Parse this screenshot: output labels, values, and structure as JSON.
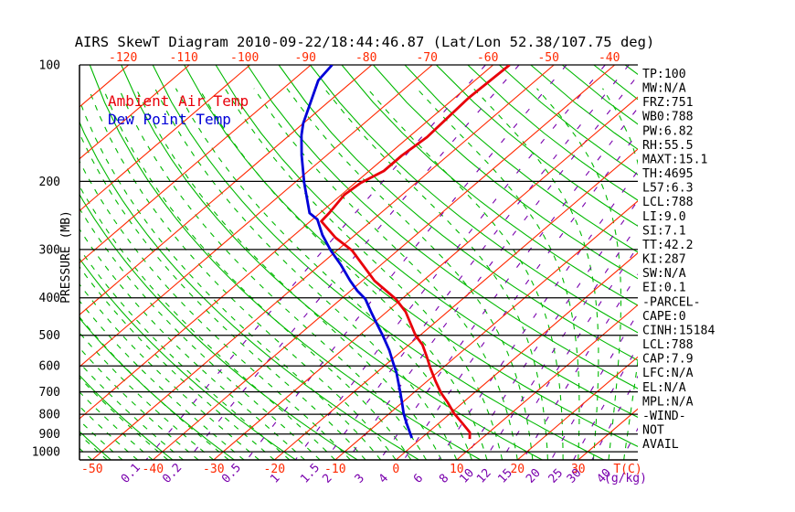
{
  "title": "AIRS SkewT Diagram 2010-09-22/18:44:46.87 (Lat/Lon 52.38/107.75 deg)",
  "legend": {
    "temperature_label": "Ambient Air Temp",
    "dewpoint_label": "Dew Point Temp"
  },
  "y_axis": {
    "label": "PRESSURE (MB)",
    "ticks": [
      100,
      200,
      300,
      400,
      500,
      600,
      700,
      800,
      900,
      1000
    ]
  },
  "x_axis_top": {
    "ticks": [
      -120,
      -110,
      -100,
      -90,
      -80,
      -70,
      -60,
      -50,
      -40
    ]
  },
  "x_axis_bottom": {
    "ticks": [
      -50,
      -40,
      -30,
      -20,
      -10,
      0,
      10,
      20,
      30
    ],
    "unit_label": "T(C)"
  },
  "mixing_ratio_axis": {
    "ticks": [
      0.1,
      0.2,
      0.5,
      1,
      1.5,
      2,
      3,
      4,
      6,
      8,
      10,
      12,
      15,
      20,
      25,
      30,
      40
    ],
    "unit_label": "(g/kg)"
  },
  "stats_panel": {
    "items": [
      "TP:100",
      "MW:N/A",
      "FRZ:751",
      "WB0:788",
      "PW:6.82",
      "RH:55.5",
      "MAXT:15.1",
      "TH:4695",
      "L57:6.3",
      "LCL:788",
      "LI:9.0",
      "SI:7.1",
      "TT:42.2",
      "KI:287",
      "SW:N/A",
      "EI:0.1",
      "-PARCEL-",
      "CAPE:0",
      "CINH:15184",
      "LCL:788",
      "CAP:7.9",
      "LFC:N/A",
      "EL:N/A",
      "MPL:N/A",
      "-WIND-",
      "NOT",
      "AVAIL"
    ]
  },
  "colors": {
    "isotherm": "#ff2800",
    "dry_adiabat": "#00b800",
    "moist_adiabat": "#00b800",
    "mixing_ratio": "#7900ad",
    "pressure_line": "#000000",
    "temperature_curve": "#e8000a",
    "dewpoint_curve": "#0000d8",
    "red_label": "#ff2800",
    "purple_label": "#7900ad",
    "text": "#000000"
  },
  "chart_data": {
    "type": "line",
    "title": "AIRS SkewT Diagram 2010-09-22/18:44:46.87 (Lat/Lon 52.38/107.75 deg)",
    "x_label": "T(C)",
    "y_label": "PRESSURE (MB)",
    "y_scale": "log",
    "y_range_mb": [
      100,
      1050
    ],
    "x_surface_range_c": [
      -52,
      40
    ],
    "skew": "isotherms slant up-right with height",
    "grid": "skew-t log-p background (isotherms, dry/moist adiabats, mixing-ratio lines)",
    "legend_position": "top-left inside plot",
    "series": [
      {
        "name": "Ambient Air Temp",
        "color_key": "temperature_curve",
        "points": [
          {
            "p": 100.0,
            "t": -57.3
          },
          {
            "p": 121.7,
            "t": -57.7
          },
          {
            "p": 153.7,
            "t": -57.0
          },
          {
            "p": 171.4,
            "t": -57.6
          },
          {
            "p": 188.0,
            "t": -57.6
          },
          {
            "p": 201.8,
            "t": -59.1
          },
          {
            "p": 216.6,
            "t": -59.5
          },
          {
            "p": 241.6,
            "t": -58.5
          },
          {
            "p": 253.6,
            "t": -58.2
          },
          {
            "p": 279.7,
            "t": -52.7
          },
          {
            "p": 301.9,
            "t": -47.5
          },
          {
            "p": 361.4,
            "t": -38.0
          },
          {
            "p": 402.8,
            "t": -31.0
          },
          {
            "p": 434.7,
            "t": -26.9
          },
          {
            "p": 500.7,
            "t": -20.7
          },
          {
            "p": 528.8,
            "t": -17.8
          },
          {
            "p": 567.6,
            "t": -14.8
          },
          {
            "p": 609.2,
            "t": -11.9
          },
          {
            "p": 657.3,
            "t": -8.6
          },
          {
            "p": 705.6,
            "t": -5.4
          },
          {
            "p": 744.8,
            "t": -2.6
          },
          {
            "p": 795.6,
            "t": 0.6
          },
          {
            "p": 839.9,
            "t": 3.6
          },
          {
            "p": 877.2,
            "t": 6.0
          },
          {
            "p": 891.8,
            "t": 6.9
          },
          {
            "p": 926.4,
            "t": 8.1
          }
        ]
      },
      {
        "name": "Dew Point Temp",
        "color_key": "dewpoint_curve",
        "points": [
          {
            "p": 100.0,
            "t": -86.5
          },
          {
            "p": 109.7,
            "t": -85.8
          },
          {
            "p": 141.7,
            "t": -80.0
          },
          {
            "p": 152.1,
            "t": -78.0
          },
          {
            "p": 171.4,
            "t": -74.1
          },
          {
            "p": 201.8,
            "t": -68.4
          },
          {
            "p": 241.6,
            "t": -61.7
          },
          {
            "p": 250.9,
            "t": -59.2
          },
          {
            "p": 275.1,
            "t": -55.4
          },
          {
            "p": 301.9,
            "t": -51.0
          },
          {
            "p": 329.4,
            "t": -46.5
          },
          {
            "p": 361.4,
            "t": -42.0
          },
          {
            "p": 383.6,
            "t": -38.9
          },
          {
            "p": 402.8,
            "t": -36.0
          },
          {
            "p": 434.7,
            "t": -32.6
          },
          {
            "p": 464.2,
            "t": -29.6
          },
          {
            "p": 500.7,
            "t": -26.1
          },
          {
            "p": 546.4,
            "t": -22.2
          },
          {
            "p": 589.6,
            "t": -19.1
          },
          {
            "p": 626.2,
            "t": -16.6
          },
          {
            "p": 705.6,
            "t": -12.1
          },
          {
            "p": 744.8,
            "t": -10.1
          },
          {
            "p": 795.6,
            "t": -7.7
          },
          {
            "p": 839.9,
            "t": -5.5
          },
          {
            "p": 886.9,
            "t": -3.2
          },
          {
            "p": 921.3,
            "t": -1.6
          }
        ]
      }
    ],
    "background_lines": {
      "isotherms_c": {
        "from": -130,
        "to": 70,
        "step": 10
      },
      "dry_adiabats_theta_c": {
        "from": -50,
        "to": 180,
        "step": 10
      },
      "moist_adiabats_surface_t_c": {
        "from": -52.5,
        "to": 40,
        "step": 2.5
      },
      "mixing_ratio_g_kg": [
        0.1,
        0.2,
        0.5,
        1,
        1.5,
        2,
        3,
        4,
        6,
        8,
        10,
        12,
        15,
        20,
        25,
        30,
        40
      ]
    }
  }
}
